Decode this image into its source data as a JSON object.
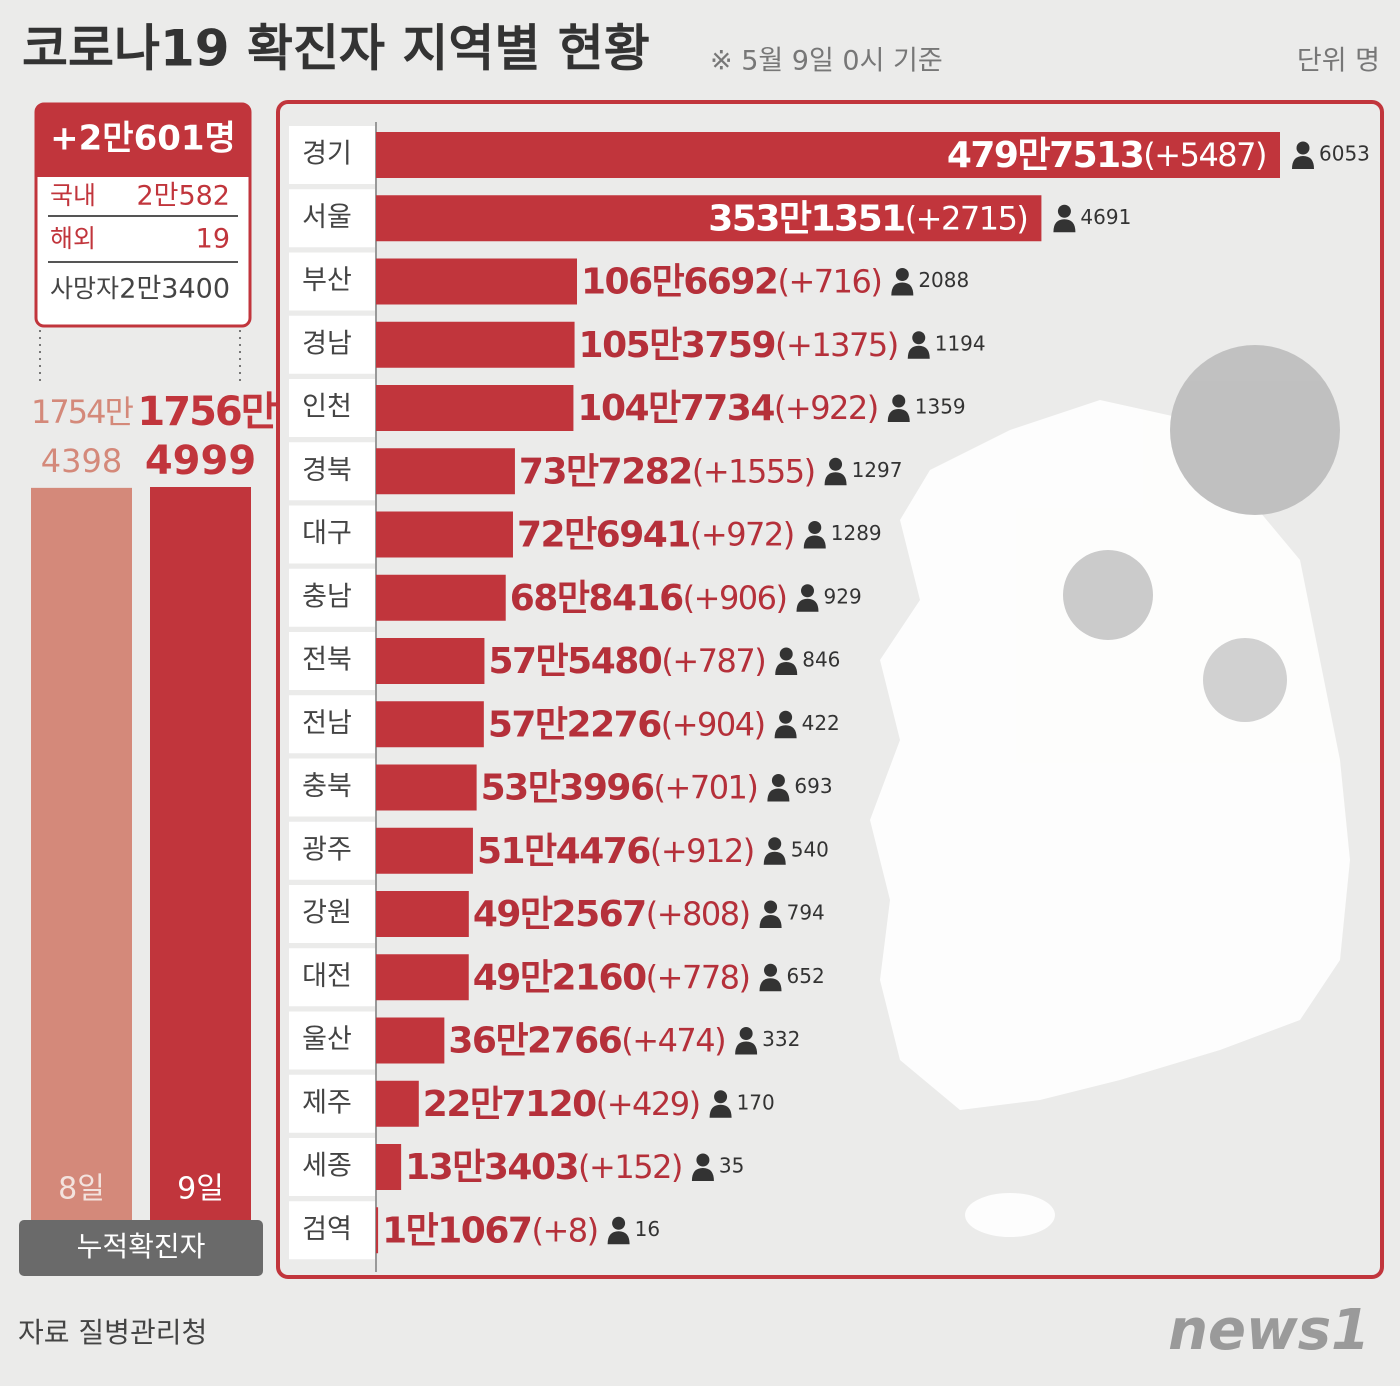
{
  "title": "코로나19 확진자 지역별 현황",
  "subtitle": "※ 5월 9일 0시 기준",
  "unit": "단위 명",
  "summary": {
    "total": "+2만601명",
    "rows": [
      {
        "label": "국내",
        "value": "2만582"
      },
      {
        "label": "해외",
        "value": "19"
      },
      {
        "label": "사망자",
        "value": "2만3400"
      }
    ]
  },
  "chart_data": [
    {
      "type": "column",
      "axis_label": "누적확진자",
      "categories": [
        "8일",
        "9일"
      ],
      "values": [
        17544398,
        17564999
      ],
      "value_labels": [
        [
          "1754만",
          "4398"
        ],
        [
          "1756만",
          "4999"
        ]
      ],
      "colors": [
        "#d4897a",
        "#c1353c"
      ]
    },
    {
      "type": "hbar",
      "color": "#c1353c",
      "categories": [
        "경기",
        "서울",
        "부산",
        "경남",
        "인천",
        "경북",
        "대구",
        "충남",
        "전북",
        "전남",
        "충북",
        "광주",
        "강원",
        "대전",
        "울산",
        "제주",
        "세종",
        "검역"
      ],
      "values": [
        4797513,
        3531351,
        1066692,
        1053759,
        1047734,
        737282,
        726941,
        688416,
        575480,
        572276,
        533996,
        514476,
        492567,
        492160,
        362766,
        227120,
        133403,
        11067
      ],
      "value_labels": [
        "479만7513",
        "353만1351",
        "106만6692",
        "105만3759",
        "104만7734",
        "73만7282",
        "72만6941",
        "68만8416",
        "57만5480",
        "57만2276",
        "53만3996",
        "51만4476",
        "49만2567",
        "49만2160",
        "36만2766",
        "22만7120",
        "13만3403",
        "1만1067"
      ],
      "new_cases": [
        5487,
        2715,
        716,
        1375,
        922,
        1555,
        972,
        906,
        787,
        904,
        701,
        912,
        808,
        778,
        474,
        429,
        152,
        8
      ],
      "new_case_labels": [
        "(+5487)",
        "(+2715)",
        "(+716)",
        "(+1375)",
        "(+922)",
        "(+1555)",
        "(+972)",
        "(+906)",
        "(+787)",
        "(+904)",
        "(+701)",
        "(+912)",
        "(+808)",
        "(+778)",
        "(+474)",
        "(+429)",
        "(+152)",
        "(+8)"
      ],
      "deaths": [
        6053,
        4691,
        2088,
        1194,
        1359,
        1297,
        1289,
        929,
        846,
        422,
        693,
        540,
        794,
        652,
        332,
        170,
        35,
        16
      ]
    }
  ],
  "source": "자료 질병관리청",
  "logo": "news1"
}
